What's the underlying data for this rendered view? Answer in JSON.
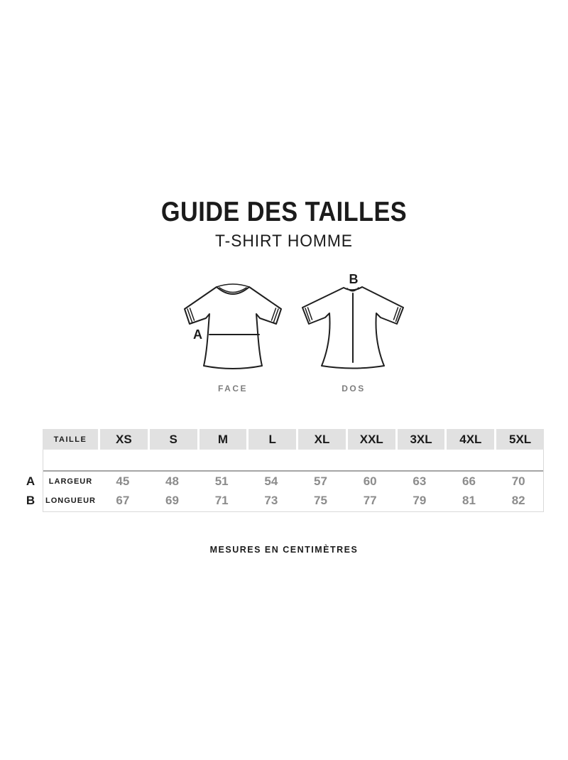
{
  "header": {
    "title": "GUIDE DES TAILLES",
    "subtitle": "T-SHIRT HOMME"
  },
  "diagrams": {
    "front": {
      "caption": "FACE",
      "measure_label": "A"
    },
    "back": {
      "caption": "DOS",
      "measure_label": "B"
    }
  },
  "table": {
    "header_label": "TAILLE",
    "sizes": [
      "XS",
      "S",
      "M",
      "L",
      "XL",
      "XXL",
      "3XL",
      "4XL",
      "5XL"
    ],
    "rows": [
      {
        "letter": "A",
        "label": "LARGEUR",
        "values": [
          45,
          48,
          51,
          54,
          57,
          60,
          63,
          66,
          70
        ]
      },
      {
        "letter": "B",
        "label": "LONGUEUR",
        "values": [
          67,
          69,
          71,
          73,
          75,
          77,
          79,
          81,
          82
        ]
      }
    ]
  },
  "footer": {
    "note": "MESURES EN CENTIMÈTRES"
  },
  "colors": {
    "text": "#1b1b1b",
    "value_gray": "#8c8c8c",
    "caption_gray": "#7e7e7e",
    "table_header_bg": "#e1e1e1",
    "table_border": "#d9d9d9",
    "table_separator": "#a5a5a5",
    "background": "#ffffff"
  }
}
